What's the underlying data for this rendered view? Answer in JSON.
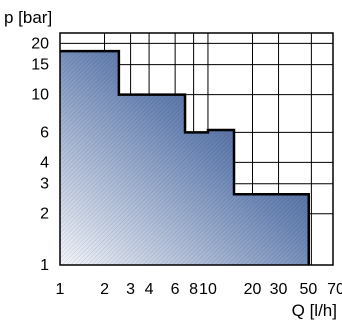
{
  "chart_data": {
    "type": "area",
    "title": "",
    "xlabel": "Q [l/h]",
    "ylabel": "p [bar]",
    "x_scale": "log",
    "y_scale": "log",
    "xlim": [
      1,
      70
    ],
    "ylim": [
      1,
      23
    ],
    "grid": true,
    "xticks": [
      {
        "value": 1,
        "label": "1"
      },
      {
        "value": 2,
        "label": "2"
      },
      {
        "value": 3,
        "label": "3"
      },
      {
        "value": 4,
        "label": "4"
      },
      {
        "value": 6,
        "label": "6"
      },
      {
        "value": 8,
        "label": "8"
      },
      {
        "value": 10,
        "label": "10"
      },
      {
        "value": 20,
        "label": "20"
      },
      {
        "value": 30,
        "label": "30"
      },
      {
        "value": 50,
        "label": "50"
      },
      {
        "value": 70,
        "label": "70"
      }
    ],
    "yticks": [
      {
        "value": 1,
        "label": "1"
      },
      {
        "value": 2,
        "label": "2"
      },
      {
        "value": 3,
        "label": "3"
      },
      {
        "value": 4,
        "label": "4"
      },
      {
        "value": 6,
        "label": "6"
      },
      {
        "value": 10,
        "label": "10"
      },
      {
        "value": 15,
        "label": "15"
      },
      {
        "value": 20,
        "label": "20"
      }
    ],
    "x_gridlines": [
      2,
      3,
      4,
      6,
      8,
      10,
      20,
      30,
      50,
      70
    ],
    "y_gridlines": [
      2,
      3,
      4,
      6,
      10,
      15,
      20
    ],
    "series": [
      {
        "outline": [
          {
            "x": 1,
            "y": 18
          },
          {
            "x": 2.5,
            "y": 18
          },
          {
            "x": 2.5,
            "y": 10
          },
          {
            "x": 7,
            "y": 10
          },
          {
            "x": 7,
            "y": 6
          },
          {
            "x": 10,
            "y": 6
          },
          {
            "x": 10,
            "y": 6.2
          },
          {
            "x": 15,
            "y": 6.2
          },
          {
            "x": 15,
            "y": 2.6
          },
          {
            "x": 48,
            "y": 2.6
          },
          {
            "x": 48,
            "y": 1
          }
        ],
        "color_dark": "#1f3c74",
        "color_light": "#f4f6fb"
      }
    ]
  }
}
